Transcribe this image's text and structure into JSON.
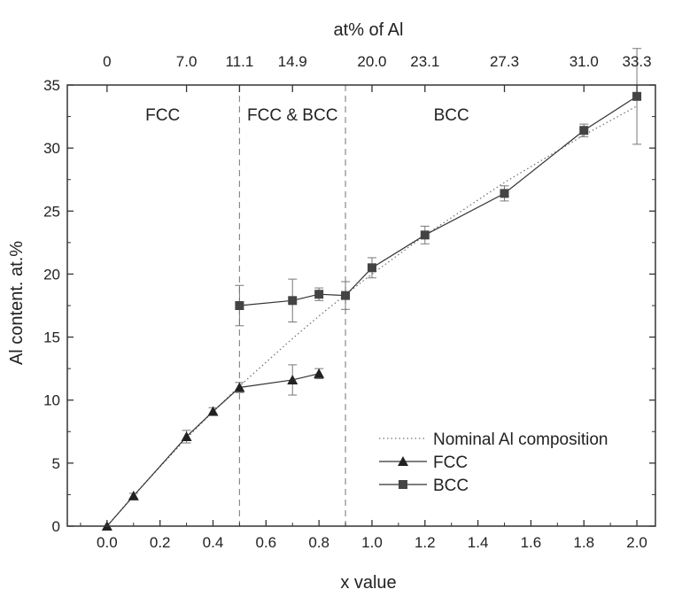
{
  "chart_data": {
    "type": "scatter",
    "xlabel": "x value",
    "ylabel": "Al content. at.%",
    "top_axis_label": "at% of Al",
    "xlim": [
      -0.15,
      2.07
    ],
    "ylim": [
      0,
      35
    ],
    "x_ticks": [
      0.0,
      0.2,
      0.4,
      0.6,
      0.8,
      1.0,
      1.2,
      1.4,
      1.6,
      1.8,
      2.0
    ],
    "x_tick_labels": [
      "0.0",
      "0.2",
      "0.4",
      "0.6",
      "0.8",
      "1.0",
      "1.2",
      "1.4",
      "1.6",
      "1.8",
      "2.0"
    ],
    "y_ticks": [
      0,
      5,
      10,
      15,
      20,
      25,
      30,
      35
    ],
    "y_tick_labels": [
      "0",
      "5",
      "10",
      "15",
      "20",
      "25",
      "30",
      "35"
    ],
    "top_ticks": [
      {
        "x": 0.0,
        "label": "0"
      },
      {
        "x": 0.3,
        "label": "7.0"
      },
      {
        "x": 0.5,
        "label": "11.1"
      },
      {
        "x": 0.7,
        "label": "14.9"
      },
      {
        "x": 1.0,
        "label": "20.0"
      },
      {
        "x": 1.2,
        "label": "23.1"
      },
      {
        "x": 1.5,
        "label": "27.3"
      },
      {
        "x": 1.8,
        "label": "31.0"
      },
      {
        "x": 2.0,
        "label": "33.3"
      }
    ],
    "phase_boundaries": [
      0.5,
      0.9
    ],
    "regions": [
      {
        "label": "FCC",
        "x": 0.21
      },
      {
        "label": "FCC & BCC",
        "x": 0.7
      },
      {
        "label": "BCC",
        "x": 1.3
      }
    ],
    "series": [
      {
        "name": "Nominal Al composition",
        "style": "dotted",
        "color": "#777777",
        "x": [
          0.0,
          0.1,
          0.3,
          0.4,
          0.5,
          0.7,
          0.8,
          0.9,
          1.0,
          1.2,
          1.5,
          1.8,
          2.0
        ],
        "y": [
          0.0,
          2.44,
          6.98,
          9.09,
          11.11,
          14.89,
          16.67,
          18.37,
          20.0,
          23.08,
          27.27,
          31.03,
          33.33
        ]
      },
      {
        "name": "FCC",
        "marker": "triangle",
        "color": "#222222",
        "x": [
          0.0,
          0.1,
          0.3,
          0.4,
          0.5,
          0.7,
          0.8
        ],
        "y": [
          0.0,
          2.4,
          7.1,
          9.1,
          11.0,
          11.6,
          12.1
        ],
        "err": [
          0.0,
          0.2,
          0.5,
          0.3,
          0.4,
          1.2,
          0.4
        ]
      },
      {
        "name": "BCC",
        "marker": "square",
        "color": "#444444",
        "x": [
          0.5,
          0.7,
          0.8,
          0.9,
          1.0,
          1.2,
          1.5,
          1.8,
          2.0
        ],
        "y": [
          17.5,
          17.9,
          18.4,
          18.3,
          20.5,
          23.1,
          26.4,
          31.4,
          34.1
        ],
        "err": [
          1.6,
          1.7,
          0.5,
          1.1,
          0.8,
          0.7,
          0.6,
          0.5,
          3.8
        ]
      }
    ],
    "legend": {
      "position": "bottom-right",
      "entries": [
        "Nominal Al composition",
        "FCC",
        "BCC"
      ]
    },
    "grid": false
  }
}
